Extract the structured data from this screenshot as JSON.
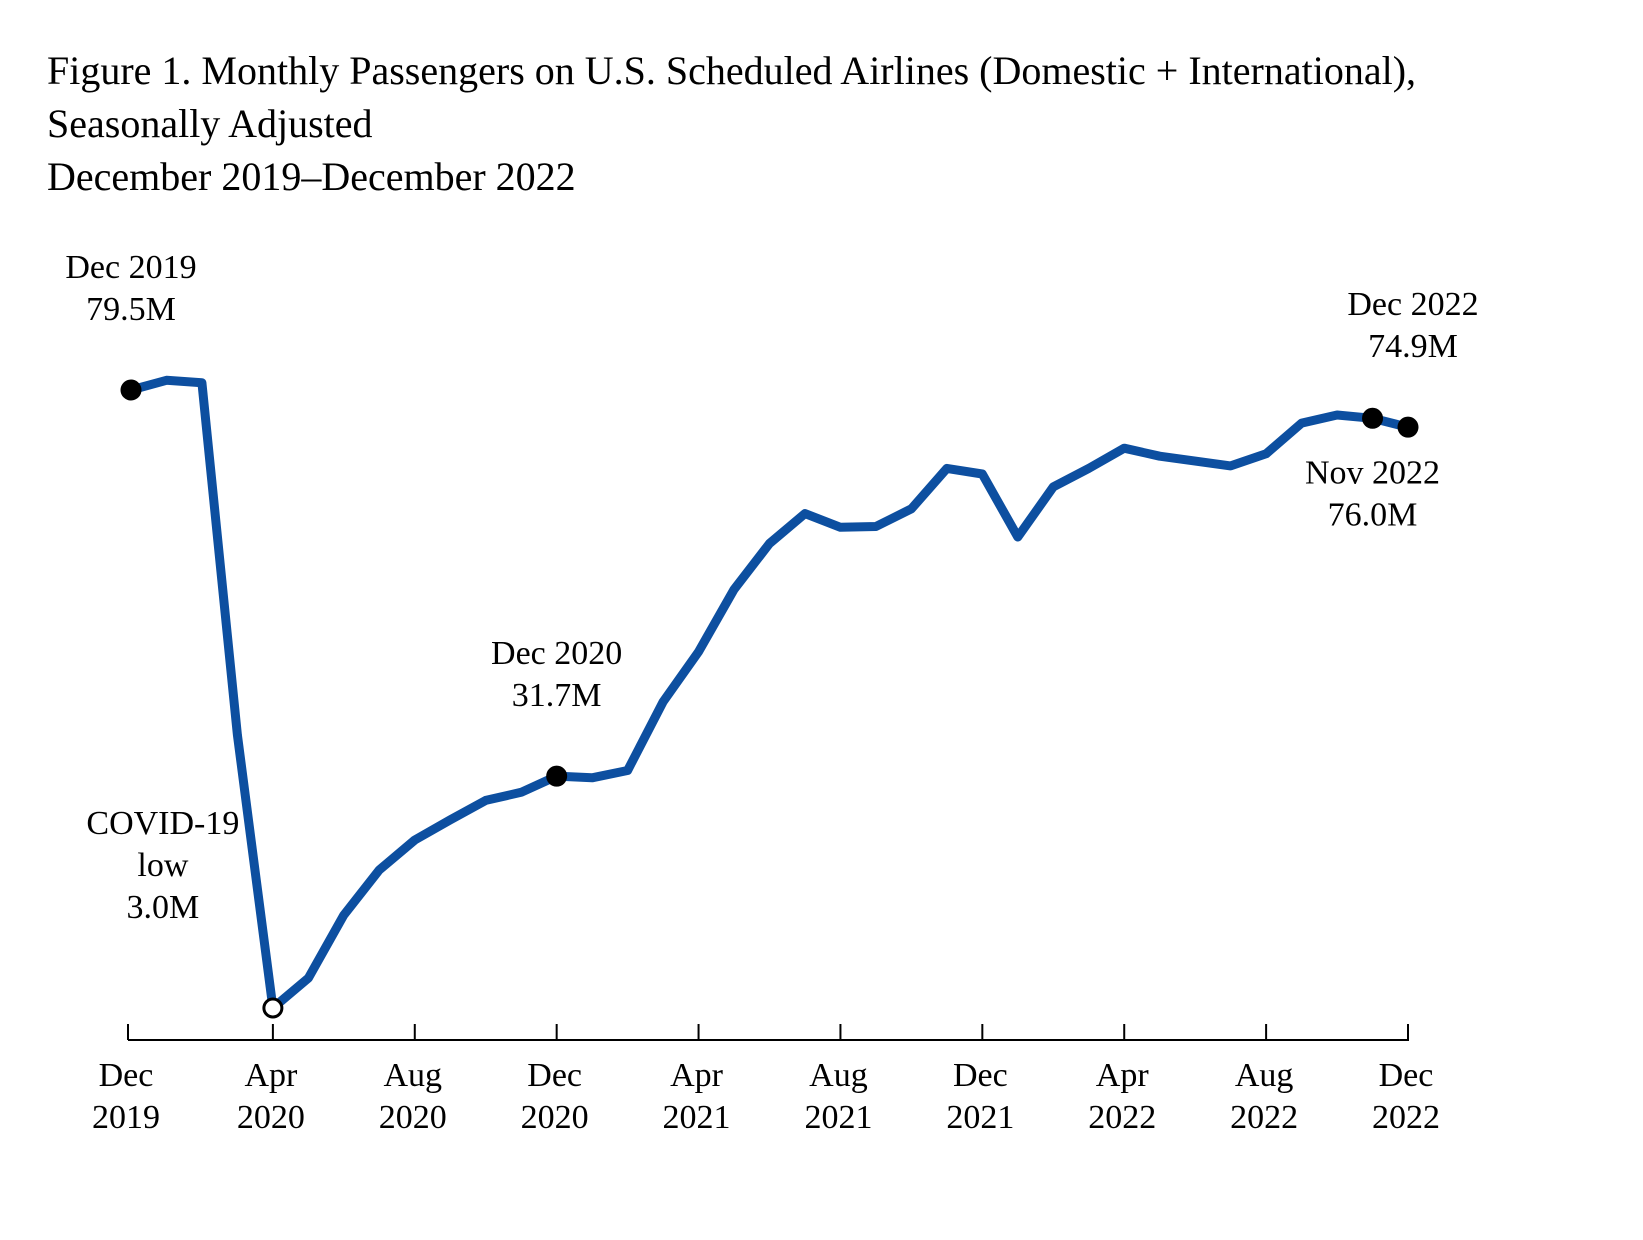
{
  "title_lines": [
    "Figure 1. Monthly Passengers on U.S. Scheduled Airlines (Domestic + International),",
    "Seasonally Adjusted",
    "December 2019–December 2022"
  ],
  "chart_data": {
    "type": "line",
    "title": "Figure 1. Monthly Passengers on U.S. Scheduled Airlines (Domestic + International), Seasonally Adjusted, December 2019–December 2022",
    "xlabel": "",
    "ylabel": "",
    "units": "millions of passengers",
    "grid": false,
    "legend": "none",
    "line_color": "#0D4FA0",
    "x": [
      "2019-12",
      "2020-01",
      "2020-02",
      "2020-03",
      "2020-04",
      "2020-05",
      "2020-06",
      "2020-07",
      "2020-08",
      "2020-09",
      "2020-10",
      "2020-11",
      "2020-12",
      "2021-01",
      "2021-02",
      "2021-03",
      "2021-04",
      "2021-05",
      "2021-06",
      "2021-07",
      "2021-08",
      "2021-09",
      "2021-10",
      "2021-11",
      "2021-12",
      "2022-01",
      "2022-02",
      "2022-03",
      "2022-04",
      "2022-05",
      "2022-06",
      "2022-07",
      "2022-08",
      "2022-09",
      "2022-10",
      "2022-11",
      "2022-12"
    ],
    "values": [
      79.5,
      80.7,
      80.4,
      36.8,
      3.0,
      6.7,
      14.5,
      20.1,
      23.8,
      26.3,
      28.7,
      29.7,
      31.7,
      31.5,
      32.4,
      40.9,
      47.1,
      54.8,
      60.5,
      64.2,
      62.5,
      62.6,
      64.8,
      69.8,
      69.1,
      61.3,
      67.5,
      69.8,
      72.3,
      71.3,
      70.7,
      70.1,
      71.6,
      75.4,
      76.4,
      76.0,
      74.9
    ],
    "x_ticks": [
      {
        "index": 0,
        "line1": "Dec",
        "line2": "2019"
      },
      {
        "index": 4,
        "line1": "Apr",
        "line2": "2020"
      },
      {
        "index": 8,
        "line1": "Aug",
        "line2": "2020"
      },
      {
        "index": 12,
        "line1": "Dec",
        "line2": "2020"
      },
      {
        "index": 16,
        "line1": "Apr",
        "line2": "2021"
      },
      {
        "index": 20,
        "line1": "Aug",
        "line2": "2021"
      },
      {
        "index": 24,
        "line1": "Dec",
        "line2": "2021"
      },
      {
        "index": 28,
        "line1": "Apr",
        "line2": "2022"
      },
      {
        "index": 32,
        "line1": "Aug",
        "line2": "2022"
      },
      {
        "index": 36,
        "line1": "Dec",
        "line2": "2022"
      }
    ],
    "annotations": [
      {
        "index": 0,
        "lines": [
          "Dec 2019",
          "79.5M"
        ],
        "marker": "filled",
        "position": "above"
      },
      {
        "index": 4,
        "lines": [
          "COVID-19",
          "low",
          "3.0M"
        ],
        "marker": "open",
        "position": "above-left"
      },
      {
        "index": 12,
        "lines": [
          "Dec 2020",
          "31.7M"
        ],
        "marker": "filled",
        "position": "above"
      },
      {
        "index": 35,
        "lines": [
          "Nov 2022",
          "76.0M"
        ],
        "marker": "filled",
        "position": "below"
      },
      {
        "index": 36,
        "lines": [
          "Dec 2022",
          "74.9M"
        ],
        "marker": "filled",
        "position": "above"
      }
    ]
  }
}
